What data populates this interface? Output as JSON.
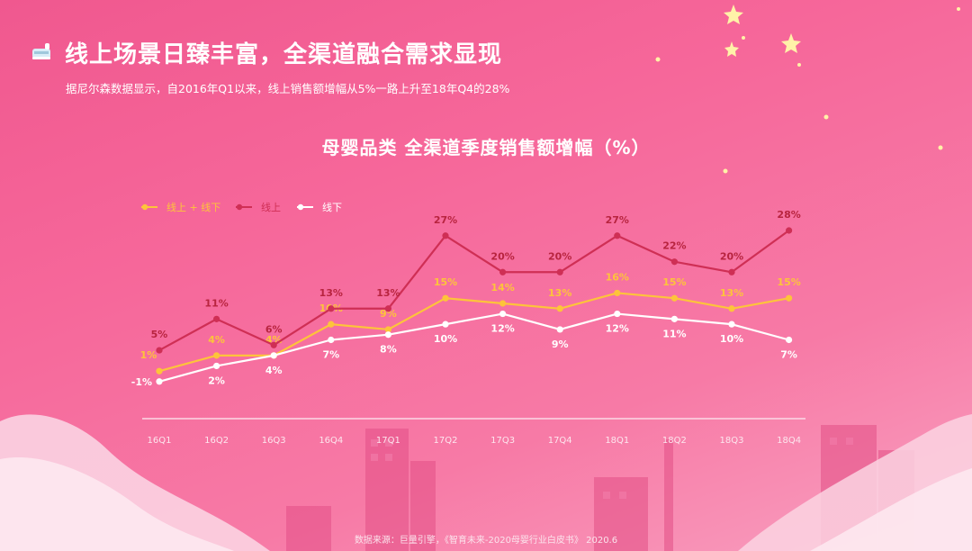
{
  "header": {
    "icon": "baby-bottle-icon",
    "title": "线上场景日臻丰富，全渠道融合需求显现",
    "subtitle": "据尼尔森数据显示，自2016年Q1以来，线上销售额增幅从5%一路上升至18年Q4的28%"
  },
  "chart_data": {
    "type": "line",
    "title": "母婴品类 全渠道季度销售额增幅（%）",
    "categories": [
      "16Q1",
      "16Q2",
      "16Q3",
      "16Q4",
      "17Q1",
      "17Q2",
      "17Q3",
      "17Q4",
      "18Q1",
      "18Q2",
      "18Q3",
      "18Q4"
    ],
    "series": [
      {
        "name": "线上 + 线下",
        "color": "#fdc43a",
        "values": [
          1,
          4,
          4,
          10,
          9,
          15,
          14,
          13,
          16,
          15,
          13,
          15
        ]
      },
      {
        "name": "线上",
        "color": "#cf2f55",
        "values": [
          5,
          11,
          6,
          13,
          13,
          27,
          20,
          20,
          27,
          22,
          20,
          28
        ]
      },
      {
        "name": "线下",
        "color": "#ffffff",
        "values": [
          -1,
          2,
          4,
          7,
          8,
          10,
          12,
          9,
          12,
          11,
          10,
          7
        ]
      }
    ],
    "value_suffix": "%",
    "legend_position": "top-left",
    "grid": false
  },
  "footer": {
    "source": "数据来源：巨量引擎，《智育未来-2020母婴行业白皮书》 2020.6"
  }
}
